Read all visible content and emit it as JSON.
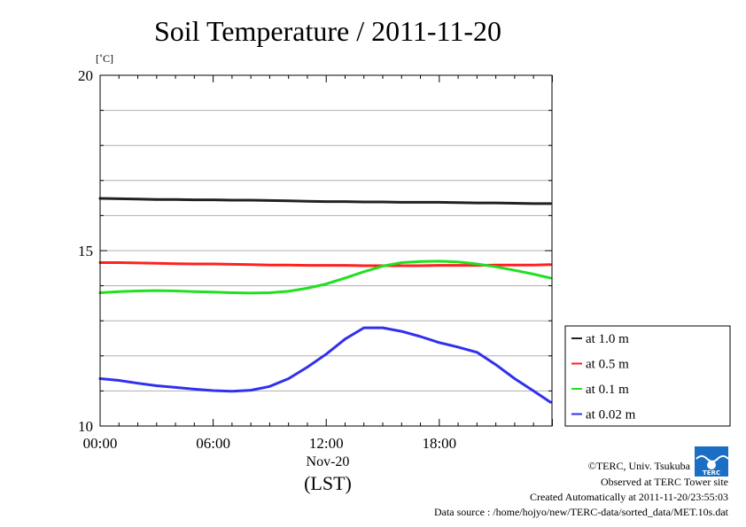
{
  "chart_data": {
    "type": "line",
    "title": "Soil Temperature / 2011-11-20",
    "ylabel": "[˚C]",
    "xlabel": "(LST)",
    "date_label": "Nov-20",
    "xlim": [
      0,
      23.98
    ],
    "ylim": [
      10,
      20
    ],
    "x_ticks": [
      {
        "value": 0,
        "label": "00:00"
      },
      {
        "value": 6,
        "label": "06:00"
      },
      {
        "value": 12,
        "label": "12:00"
      },
      {
        "value": 18,
        "label": "18:00"
      }
    ],
    "y_ticks": [
      {
        "value": 10,
        "label": "10"
      },
      {
        "value": 15,
        "label": "15"
      },
      {
        "value": 20,
        "label": "20"
      }
    ],
    "grid": true,
    "legend_position": "right-bottom outside",
    "x": [
      0,
      1,
      2,
      3,
      4,
      5,
      6,
      7,
      8,
      9,
      10,
      11,
      12,
      13,
      14,
      15,
      16,
      17,
      18,
      19,
      20,
      21,
      22,
      23,
      23.9
    ],
    "series": [
      {
        "name": "at 1.0 m",
        "color": "#222222",
        "values": [
          16.49,
          16.48,
          16.47,
          16.46,
          16.46,
          16.45,
          16.45,
          16.44,
          16.44,
          16.43,
          16.42,
          16.41,
          16.4,
          16.4,
          16.39,
          16.39,
          16.38,
          16.38,
          16.38,
          16.37,
          16.36,
          16.36,
          16.35,
          16.34,
          16.34
        ]
      },
      {
        "name": "at 0.5 m",
        "color": "#ff2020",
        "values": [
          14.66,
          14.66,
          14.65,
          14.64,
          14.63,
          14.62,
          14.62,
          14.61,
          14.6,
          14.59,
          14.59,
          14.58,
          14.58,
          14.58,
          14.57,
          14.57,
          14.57,
          14.57,
          14.58,
          14.58,
          14.58,
          14.59,
          14.59,
          14.59,
          14.6
        ]
      },
      {
        "name": "at 0.1 m",
        "color": "#20e020",
        "values": [
          13.8,
          13.83,
          13.85,
          13.86,
          13.85,
          13.83,
          13.82,
          13.8,
          13.79,
          13.8,
          13.84,
          13.93,
          14.05,
          14.22,
          14.4,
          14.56,
          14.66,
          14.69,
          14.7,
          14.68,
          14.62,
          14.54,
          14.44,
          14.33,
          14.22
        ]
      },
      {
        "name": "at 0.02 m",
        "color": "#3030ee",
        "values": [
          11.35,
          11.3,
          11.22,
          11.15,
          11.1,
          11.05,
          11.01,
          10.99,
          11.02,
          11.13,
          11.35,
          11.68,
          12.05,
          12.48,
          12.8,
          12.8,
          12.7,
          12.55,
          12.38,
          12.25,
          12.1,
          11.75,
          11.35,
          11.0,
          10.68
        ]
      }
    ]
  },
  "credits": {
    "copyright": "©TERC, Univ. Tsukuba",
    "site": "Observed at TERC Tower site",
    "created": "Created Automatically at 2011-11-20/23:55:03",
    "source": "Data source : /home/hojyo/new/TERC-data/sorted_data/MET.10s.dat",
    "logo_text": "TERC",
    "logo_color": "#1a6fc4"
  }
}
